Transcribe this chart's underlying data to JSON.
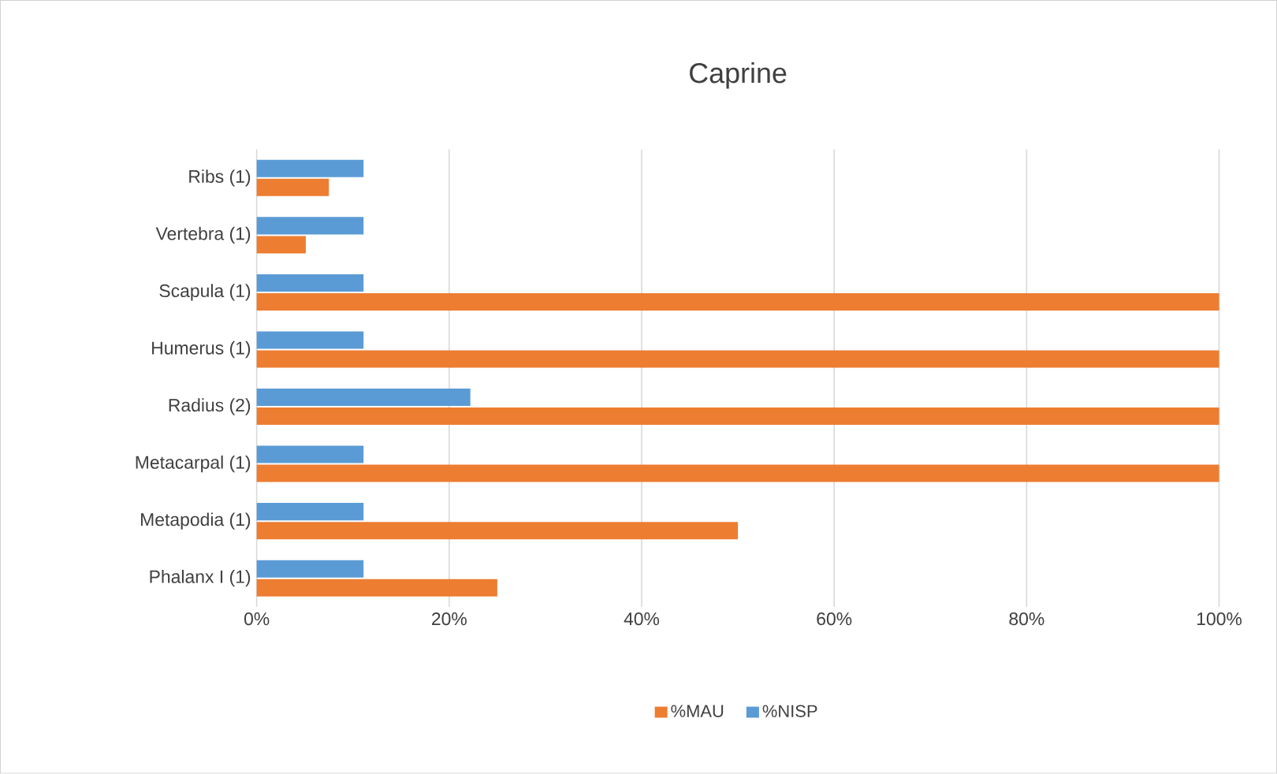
{
  "chart_data": {
    "type": "bar",
    "orientation": "horizontal",
    "title": "Caprine",
    "categories": [
      "Ribs (1)",
      "Vertebra (1)",
      "Scapula (1)",
      "Humerus (1)",
      "Radius (2)",
      "Metacarpal (1)",
      "Metapodia (1)",
      "Phalanx I (1)"
    ],
    "series": [
      {
        "name": "%MAU",
        "color": "#ed7d31",
        "values": [
          7.5,
          5.1,
          100,
          100,
          100,
          100,
          50,
          25
        ]
      },
      {
        "name": "%NISP",
        "color": "#5b9bd5",
        "values": [
          11.1,
          11.1,
          11.1,
          11.1,
          22.2,
          11.1,
          11.1,
          11.1
        ]
      }
    ],
    "xlim": [
      0,
      100
    ],
    "xticks": [
      {
        "value": 0,
        "label": "0%"
      },
      {
        "value": 20,
        "label": "20%"
      },
      {
        "value": 40,
        "label": "40%"
      },
      {
        "value": 60,
        "label": "60%"
      },
      {
        "value": 80,
        "label": "80%"
      },
      {
        "value": 100,
        "label": "100%"
      }
    ],
    "grid": "x",
    "legend": "bottom"
  }
}
